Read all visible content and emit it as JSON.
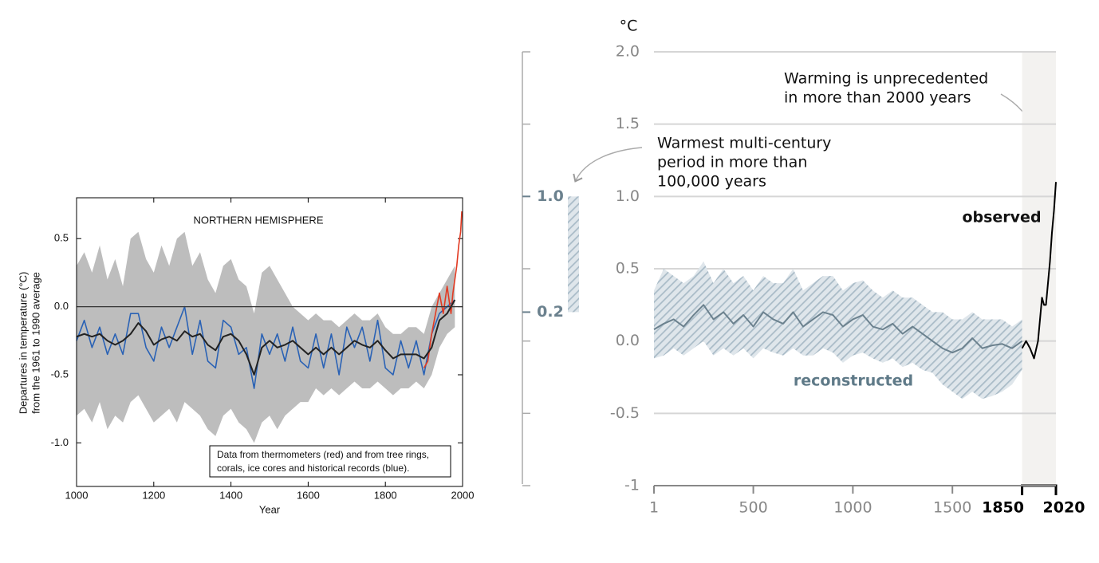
{
  "chart_data": [
    {
      "type": "line",
      "title": "NORTHERN HEMISPHERE",
      "xlabel": "Year",
      "ylabel": [
        "Departures in temperature (°C)",
        "from the 1961 to 1990 average"
      ],
      "note": [
        "Data from thermometers (red) and from tree rings,",
        "corals, ice cores and historical records (blue)."
      ],
      "xlim": [
        1000,
        2000
      ],
      "ylim": [
        -1.32,
        0.8
      ],
      "xticks": [
        1000,
        1200,
        1400,
        1600,
        1800,
        2000
      ],
      "yticks": [
        0.5,
        {
          "value": 0,
          "label": "0.0"
        },
        -0.5,
        {
          "value": -1,
          "label": "-1.0"
        }
      ],
      "hline": 0,
      "grid": false,
      "frame": true,
      "series": [
        {
          "kind": "band",
          "color": "#bdbdbd",
          "x": [
            1000,
            1020,
            1040,
            1060,
            1080,
            1100,
            1120,
            1140,
            1160,
            1180,
            1200,
            1220,
            1240,
            1260,
            1280,
            1300,
            1320,
            1340,
            1360,
            1380,
            1400,
            1420,
            1440,
            1460,
            1480,
            1500,
            1520,
            1540,
            1560,
            1580,
            1600,
            1620,
            1640,
            1660,
            1680,
            1700,
            1720,
            1740,
            1760,
            1780,
            1800,
            1820,
            1840,
            1860,
            1880,
            1900,
            1920,
            1940,
            1960,
            1980
          ],
          "upper": [
            0.3,
            0.4,
            0.25,
            0.45,
            0.2,
            0.35,
            0.15,
            0.5,
            0.55,
            0.35,
            0.25,
            0.45,
            0.3,
            0.5,
            0.55,
            0.3,
            0.4,
            0.2,
            0.1,
            0.3,
            0.35,
            0.2,
            0.15,
            -0.05,
            0.25,
            0.3,
            0.2,
            0.1,
            0.0,
            -0.05,
            -0.1,
            -0.05,
            -0.1,
            -0.1,
            -0.15,
            -0.1,
            -0.05,
            -0.1,
            -0.1,
            -0.05,
            -0.15,
            -0.2,
            -0.2,
            -0.15,
            -0.15,
            -0.2,
            0.0,
            0.1,
            0.2,
            0.3
          ],
          "lower": [
            -0.8,
            -0.75,
            -0.85,
            -0.7,
            -0.9,
            -0.8,
            -0.85,
            -0.7,
            -0.65,
            -0.75,
            -0.85,
            -0.8,
            -0.75,
            -0.85,
            -0.7,
            -0.75,
            -0.8,
            -0.9,
            -0.95,
            -0.8,
            -0.75,
            -0.85,
            -0.9,
            -1.0,
            -0.85,
            -0.8,
            -0.9,
            -0.8,
            -0.75,
            -0.7,
            -0.7,
            -0.6,
            -0.65,
            -0.6,
            -0.65,
            -0.6,
            -0.55,
            -0.6,
            -0.6,
            -0.55,
            -0.6,
            -0.65,
            -0.6,
            -0.6,
            -0.55,
            -0.6,
            -0.5,
            -0.3,
            -0.2,
            -0.15
          ]
        },
        {
          "kind": "line",
          "color": "#2a62b5",
          "width": 1.6,
          "x": [
            1000,
            1020,
            1040,
            1060,
            1080,
            1100,
            1120,
            1140,
            1160,
            1180,
            1200,
            1220,
            1240,
            1260,
            1280,
            1300,
            1320,
            1340,
            1360,
            1380,
            1400,
            1420,
            1440,
            1460,
            1480,
            1500,
            1520,
            1540,
            1560,
            1580,
            1600,
            1620,
            1640,
            1660,
            1680,
            1700,
            1720,
            1740,
            1760,
            1780,
            1800,
            1820,
            1840,
            1860,
            1880,
            1900,
            1920,
            1940,
            1960,
            1980
          ],
          "values": [
            -0.25,
            -0.1,
            -0.3,
            -0.15,
            -0.35,
            -0.2,
            -0.35,
            -0.05,
            -0.05,
            -0.3,
            -0.4,
            -0.15,
            -0.3,
            -0.15,
            0.0,
            -0.35,
            -0.1,
            -0.4,
            -0.45,
            -0.1,
            -0.15,
            -0.35,
            -0.3,
            -0.6,
            -0.2,
            -0.35,
            -0.2,
            -0.4,
            -0.15,
            -0.4,
            -0.45,
            -0.2,
            -0.45,
            -0.2,
            -0.5,
            -0.15,
            -0.3,
            -0.15,
            -0.4,
            -0.1,
            -0.45,
            -0.5,
            -0.25,
            -0.45,
            -0.25,
            -0.5,
            -0.2,
            -0.05,
            0.0,
            0.05
          ]
        },
        {
          "kind": "line",
          "color": "#e23a22",
          "width": 1.6,
          "x": [
            1900,
            1910,
            1920,
            1930,
            1940,
            1950,
            1960,
            1970,
            1975,
            1980,
            1985,
            1990,
            1995,
            1998
          ],
          "values": [
            -0.45,
            -0.4,
            -0.2,
            -0.05,
            0.1,
            -0.05,
            0.15,
            -0.05,
            0.1,
            0.2,
            0.3,
            0.45,
            0.55,
            0.7
          ]
        },
        {
          "kind": "line",
          "color": "#222222",
          "width": 2,
          "x": [
            1000,
            1020,
            1040,
            1060,
            1080,
            1100,
            1120,
            1140,
            1160,
            1180,
            1200,
            1220,
            1240,
            1260,
            1280,
            1300,
            1320,
            1340,
            1360,
            1380,
            1400,
            1420,
            1440,
            1460,
            1480,
            1500,
            1520,
            1540,
            1560,
            1580,
            1600,
            1620,
            1640,
            1660,
            1680,
            1700,
            1720,
            1740,
            1760,
            1780,
            1800,
            1820,
            1840,
            1860,
            1880,
            1900,
            1920,
            1940,
            1960,
            1980
          ],
          "values": [
            -0.22,
            -0.2,
            -0.22,
            -0.2,
            -0.25,
            -0.28,
            -0.25,
            -0.2,
            -0.12,
            -0.18,
            -0.28,
            -0.24,
            -0.22,
            -0.25,
            -0.18,
            -0.22,
            -0.2,
            -0.28,
            -0.32,
            -0.22,
            -0.2,
            -0.25,
            -0.35,
            -0.5,
            -0.3,
            -0.25,
            -0.3,
            -0.28,
            -0.25,
            -0.3,
            -0.35,
            -0.3,
            -0.35,
            -0.3,
            -0.35,
            -0.3,
            -0.25,
            -0.28,
            -0.3,
            -0.25,
            -0.32,
            -0.38,
            -0.35,
            -0.35,
            -0.35,
            -0.38,
            -0.3,
            -0.1,
            -0.05,
            0.05
          ]
        }
      ]
    },
    {
      "type": "line",
      "ylabel": "°C",
      "xlim": [
        1,
        2020
      ],
      "ylim": [
        -1,
        2
      ],
      "xticks": [
        1,
        500,
        1000,
        1500,
        1850,
        2020
      ],
      "yticks": [
        {
          "value": 2,
          "label": "2.0"
        },
        1.5,
        {
          "value": 1,
          "label": "1.0"
        },
        0.5,
        {
          "value": 0,
          "label": "0.0"
        },
        -0.5,
        -1
      ],
      "grid": true,
      "frame": false,
      "shade": [
        1850,
        2020
      ],
      "range_bar": {
        "values": [
          0.2,
          1.0
        ],
        "value_labels": [
          "0.2",
          "1.0"
        ],
        "color": "#b4c3ce"
      },
      "annotations": [
        {
          "text": [
            "Warming is unprecedented",
            "in more than 2000 years"
          ]
        },
        {
          "text": [
            "Warmest multi-century",
            "period in more than",
            "100,000 years"
          ]
        },
        {
          "text": [
            "observed"
          ]
        },
        {
          "text": [
            "reconstructed"
          ]
        }
      ],
      "series": [
        {
          "kind": "band",
          "color": "#b4c3ce",
          "x": [
            1,
            50,
            100,
            150,
            200,
            250,
            300,
            350,
            400,
            450,
            500,
            550,
            600,
            650,
            700,
            750,
            800,
            850,
            900,
            950,
            1000,
            1050,
            1100,
            1150,
            1200,
            1250,
            1300,
            1350,
            1400,
            1450,
            1500,
            1550,
            1600,
            1650,
            1700,
            1750,
            1800,
            1850
          ],
          "upper": [
            0.35,
            0.5,
            0.45,
            0.4,
            0.45,
            0.55,
            0.4,
            0.5,
            0.4,
            0.45,
            0.35,
            0.45,
            0.4,
            0.4,
            0.5,
            0.35,
            0.4,
            0.45,
            0.45,
            0.35,
            0.4,
            0.42,
            0.35,
            0.3,
            0.35,
            0.3,
            0.3,
            0.25,
            0.2,
            0.2,
            0.15,
            0.15,
            0.2,
            0.15,
            0.15,
            0.15,
            0.1,
            0.15
          ],
          "lower": [
            -0.12,
            -0.1,
            -0.05,
            -0.1,
            -0.05,
            0.0,
            -0.1,
            -0.05,
            -0.1,
            -0.05,
            -0.12,
            -0.05,
            -0.08,
            -0.1,
            -0.05,
            -0.1,
            -0.1,
            -0.05,
            -0.08,
            -0.15,
            -0.1,
            -0.08,
            -0.12,
            -0.15,
            -0.12,
            -0.18,
            -0.15,
            -0.2,
            -0.22,
            -0.3,
            -0.35,
            -0.4,
            -0.35,
            -0.4,
            -0.38,
            -0.35,
            -0.3,
            -0.2
          ]
        },
        {
          "kind": "line",
          "color": "#6b818e",
          "width": 2,
          "x": [
            1,
            50,
            100,
            150,
            200,
            250,
            300,
            350,
            400,
            450,
            500,
            550,
            600,
            650,
            700,
            750,
            800,
            850,
            900,
            950,
            1000,
            1050,
            1100,
            1150,
            1200,
            1250,
            1300,
            1350,
            1400,
            1450,
            1500,
            1550,
            1600,
            1650,
            1700,
            1750,
            1800,
            1850
          ],
          "values": [
            0.08,
            0.12,
            0.15,
            0.1,
            0.18,
            0.25,
            0.15,
            0.2,
            0.12,
            0.18,
            0.1,
            0.2,
            0.15,
            0.12,
            0.2,
            0.1,
            0.15,
            0.2,
            0.18,
            0.1,
            0.15,
            0.18,
            0.1,
            0.08,
            0.12,
            0.05,
            0.1,
            0.05,
            0.0,
            -0.05,
            -0.08,
            -0.05,
            0.02,
            -0.05,
            -0.03,
            -0.02,
            -0.05,
            0.0
          ]
        },
        {
          "kind": "line",
          "color": "#000000",
          "width": 2,
          "x": [
            1850,
            1870,
            1890,
            1910,
            1930,
            1950,
            1960,
            1970,
            1980,
            1990,
            2000,
            2010,
            2020
          ],
          "values": [
            -0.05,
            0.0,
            -0.05,
            -0.12,
            0.0,
            0.3,
            0.25,
            0.25,
            0.4,
            0.55,
            0.75,
            0.9,
            1.1
          ]
        }
      ]
    }
  ]
}
